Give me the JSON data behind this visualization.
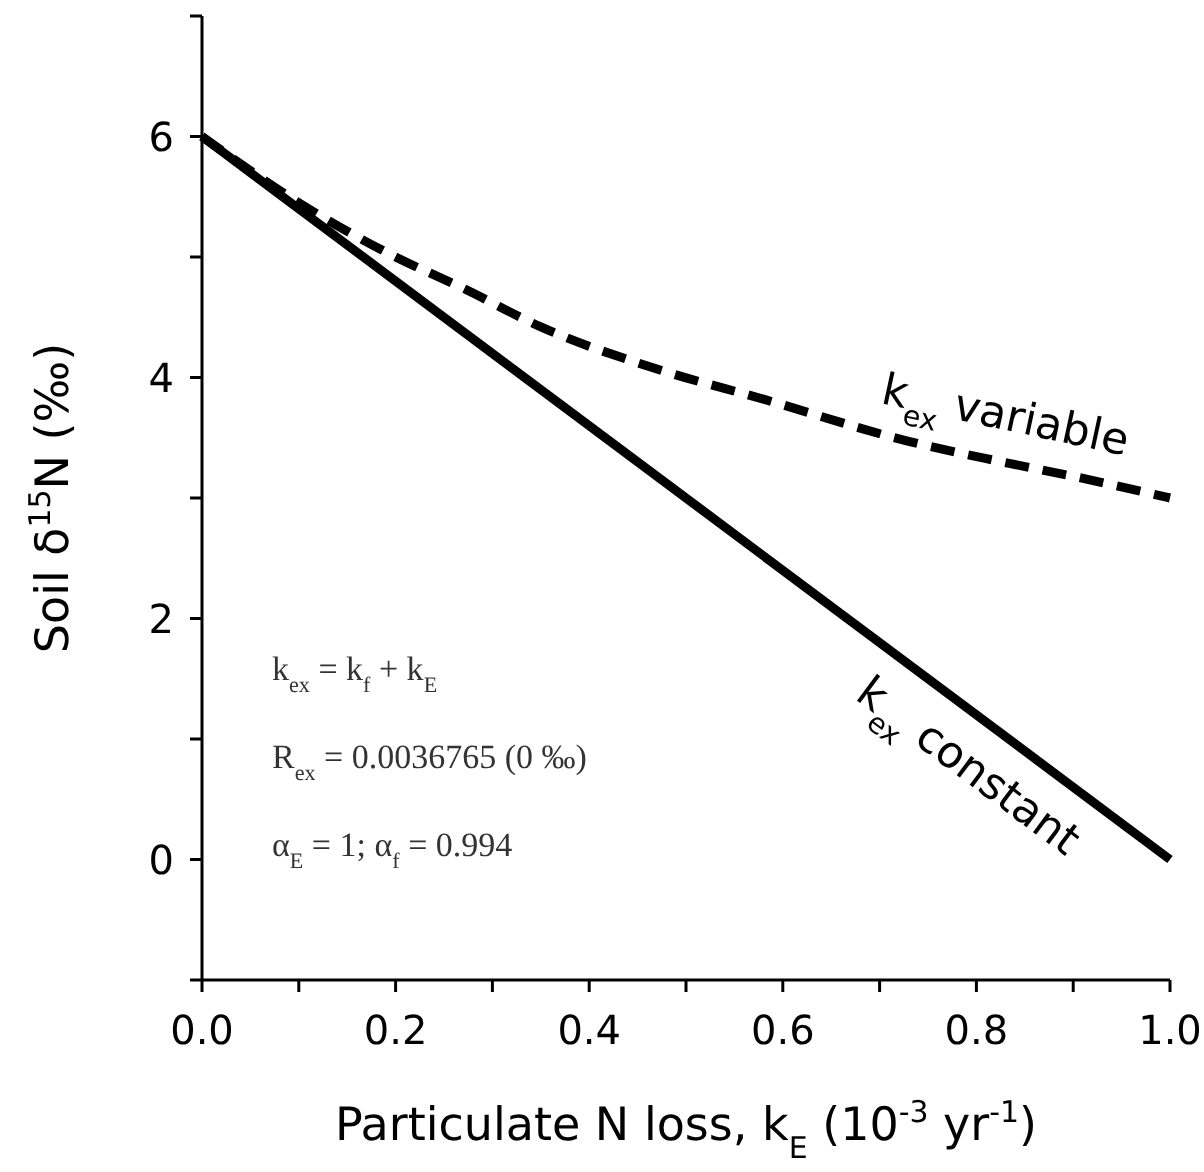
{
  "chart_data": {
    "type": "line",
    "xlabel": "Particulate N loss, k$_{E}$ (10$^{-3}$ yr$^{-1}$)",
    "ylabel": "Soil δ$^{15}$N (‰)",
    "xlim": [
      0,
      1
    ],
    "ylim": [
      -1,
      7
    ],
    "xticks": [
      {
        "value": 0,
        "label": "0.0"
      },
      {
        "value": 0.1,
        "label": null
      },
      {
        "value": 0.2,
        "label": "0.2"
      },
      {
        "value": 0.3,
        "label": null
      },
      {
        "value": 0.4,
        "label": "0.4"
      },
      {
        "value": 0.5,
        "label": null
      },
      {
        "value": 0.6,
        "label": "0.6"
      },
      {
        "value": 0.7,
        "label": null
      },
      {
        "value": 0.8,
        "label": "0.8"
      },
      {
        "value": 0.9,
        "label": null
      },
      {
        "value": 1,
        "label": "1.0"
      }
    ],
    "yticks": [
      {
        "value": -1,
        "label": null
      },
      0,
      {
        "value": 1,
        "label": null
      },
      2,
      {
        "value": 3,
        "label": null
      },
      4,
      {
        "value": 5,
        "label": null
      },
      6,
      {
        "value": 7,
        "label": null
      }
    ],
    "grid": false,
    "series": [
      {
        "name": "k$_{ex}$ variable",
        "color": "#000000",
        "line_style": "dashed",
        "x": [
          0,
          0.1,
          0.2,
          0.27,
          0.35,
          0.47,
          0.58,
          0.73,
          0.82,
          0.9,
          1.0
        ],
        "values": [
          6.0,
          5.45,
          5.0,
          4.74,
          4.42,
          4.07,
          3.82,
          3.47,
          3.31,
          3.18,
          3.0
        ]
      },
      {
        "name": "k$_{ex}$ constant",
        "color": "#000000",
        "line_style": "solid",
        "x": [
          0,
          1.0
        ],
        "values": [
          6.0,
          0
        ]
      }
    ],
    "annotations": [
      "k$_{ex}$ = k$_{f}$ + k$_{E}$",
      "R$_{ex}$ = 0.0036765 (0 ‰)",
      "α$_{E}$ = 1; α$_{f}$ = 0.994"
    ]
  }
}
